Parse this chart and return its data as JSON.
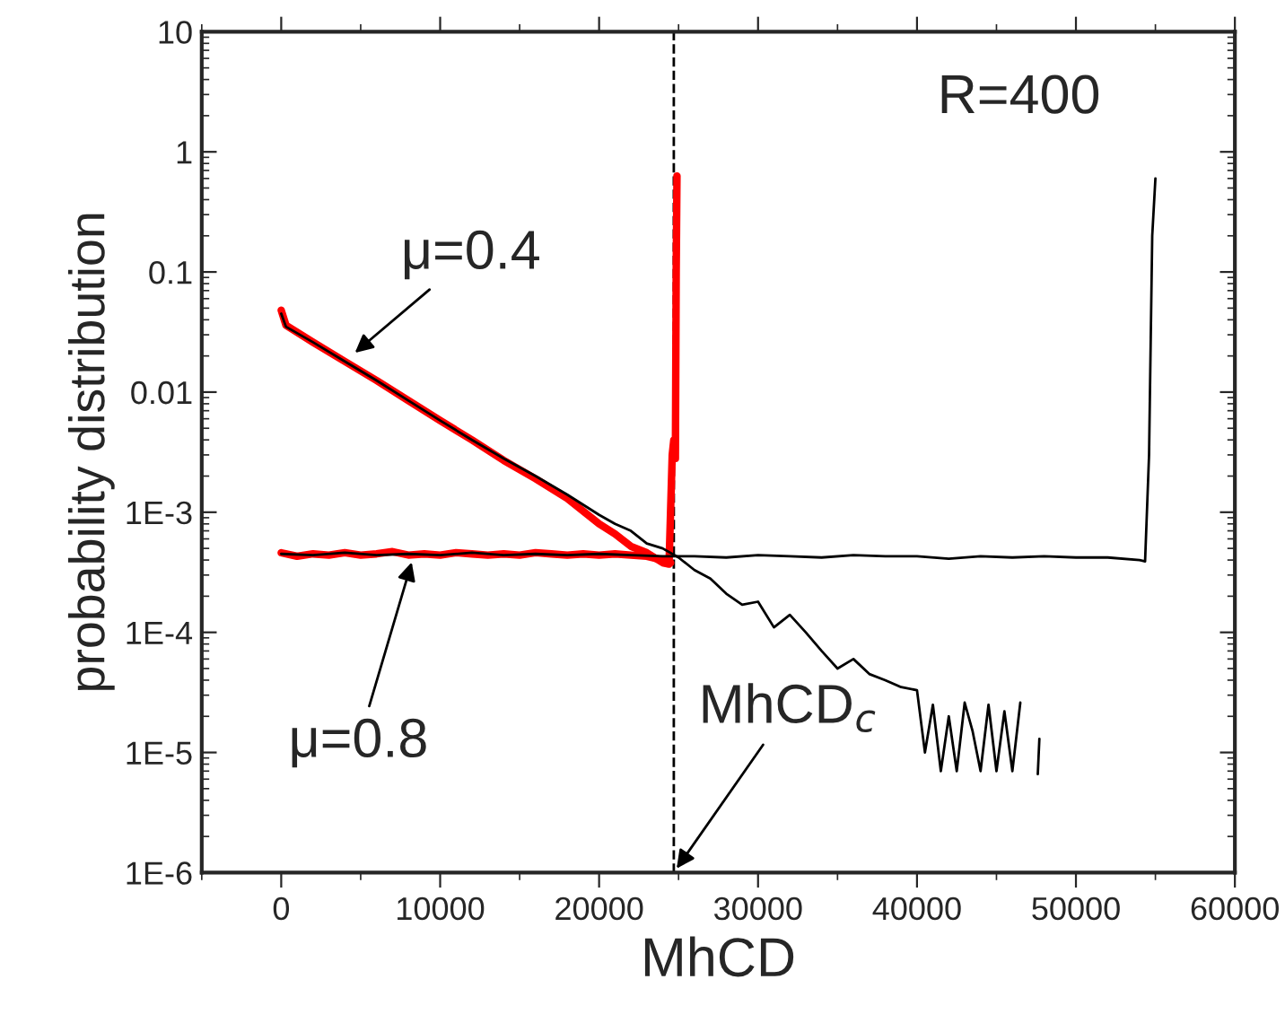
{
  "chart_data": {
    "type": "line",
    "xlabel": "MhCD",
    "ylabel": "probability distribution",
    "log": "y",
    "xlim": [
      -5000,
      60000
    ],
    "xticks": [
      0,
      10000,
      20000,
      30000,
      40000,
      50000,
      60000
    ],
    "ylim": [
      1e-06,
      10
    ],
    "yticks": [
      {
        "value": 1e-06,
        "label": "1E-6"
      },
      {
        "value": 1e-05,
        "label": "1E-5"
      },
      {
        "value": 0.0001,
        "label": "1E-4"
      },
      {
        "value": 0.001,
        "label": "1E-3"
      },
      {
        "value": 0.01,
        "label": "0.01"
      },
      {
        "value": 0.1,
        "label": "0.1"
      },
      {
        "value": 1,
        "label": "1"
      },
      {
        "value": 10,
        "label": "10"
      }
    ],
    "grid": false,
    "marker": "none",
    "line_style": "solid",
    "ref_lines": [
      {
        "axis": "x",
        "value": 24700,
        "color": "#000000",
        "line_style": "dashed"
      }
    ],
    "annotations": [
      {
        "text": "μ=0.4",
        "x": 4400,
        "y": 0.02
      },
      {
        "text": "μ=0.8",
        "x": 8300,
        "y": 0.00042
      },
      {
        "text": "MhCD$_{c}$",
        "x": 24700,
        "y": 1e-06
      },
      "R=400"
    ],
    "series": [
      {
        "color": "#ff0000",
        "x": [
          0,
          300,
          2000,
          4000,
          6000,
          8000,
          10000,
          12000,
          14000,
          16000,
          18000,
          20000,
          21000,
          22000,
          23000,
          24000,
          24400,
          24600,
          24700,
          24800,
          24850,
          24900
        ],
        "values": [
          0.048,
          0.036,
          0.026,
          0.018,
          0.0125,
          0.0085,
          0.0058,
          0.004,
          0.0027,
          0.0019,
          0.0013,
          0.0008,
          0.00066,
          0.00052,
          0.00046,
          0.00038,
          0.00037,
          0.003,
          0.004,
          0.0028,
          0.1,
          0.63
        ]
      },
      {
        "color": "#ff0000",
        "x": [
          0,
          1000,
          2000,
          3000,
          4000,
          5000,
          6000,
          7000,
          8000,
          9000,
          10000,
          11000,
          12000,
          13000,
          14000,
          15000,
          16000,
          17000,
          18000,
          19000,
          20000,
          21000,
          22000,
          23000,
          24000,
          24500
        ],
        "values": [
          0.00046,
          0.00043,
          0.00045,
          0.00044,
          0.00046,
          0.00044,
          0.00045,
          0.00047,
          0.00044,
          0.00045,
          0.00044,
          0.00046,
          0.00045,
          0.00044,
          0.00045,
          0.00044,
          0.00046,
          0.00045,
          0.00044,
          0.00045,
          0.00044,
          0.00045,
          0.00044,
          0.00043,
          0.0004,
          0.00038
        ]
      },
      {
        "color": "#000000",
        "x": [
          0,
          300,
          2000,
          4000,
          6000,
          8000,
          10000,
          12000,
          14000,
          16000,
          18000,
          20000,
          21000,
          22000,
          23000,
          24000,
          25000,
          26000,
          27000,
          28000,
          29000,
          30000,
          31000,
          32000,
          33000,
          34000,
          35000,
          36000,
          37000,
          38000,
          39000,
          40000,
          40500,
          41000,
          41500,
          42000,
          42500,
          43000,
          43500,
          44000,
          44500,
          45000,
          45500,
          46000,
          46500,
          47000,
          47600,
          47700
        ],
        "values": [
          0.045,
          0.035,
          0.026,
          0.018,
          0.0125,
          0.0085,
          0.0058,
          0.004,
          0.0028,
          0.002,
          0.0014,
          0.00095,
          0.0008,
          0.0007,
          0.00055,
          0.0005,
          0.00042,
          0.00033,
          0.00028,
          0.00021,
          0.00017,
          0.00018,
          0.00011,
          0.00014,
          0.0001,
          7e-05,
          5e-05,
          6e-05,
          4.5e-05,
          4e-05,
          3.5e-05,
          3.3e-05,
          1e-05,
          2.5e-05,
          7e-06,
          2e-05,
          7e-06,
          2.6e-05,
          1.5e-05,
          7e-06,
          2.5e-05,
          7e-06,
          2.2e-05,
          7e-06,
          2.6e-05,
          null,
          6.6e-06,
          1.3e-05
        ]
      },
      {
        "color": "#000000",
        "x": [
          0,
          2000,
          4000,
          6000,
          8000,
          10000,
          12000,
          14000,
          16000,
          18000,
          20000,
          22000,
          24000,
          26000,
          28000,
          30000,
          32000,
          34000,
          36000,
          38000,
          40000,
          42000,
          44000,
          46000,
          48000,
          50000,
          52000,
          54000,
          54350,
          54600,
          54800,
          55000
        ],
        "values": [
          0.00045,
          0.00044,
          0.00046,
          0.00044,
          0.00045,
          0.00044,
          0.00046,
          0.00044,
          0.00045,
          0.00044,
          0.00045,
          0.00044,
          0.00043,
          0.00043,
          0.00042,
          0.00044,
          0.00043,
          0.00042,
          0.00044,
          0.00043,
          0.00043,
          0.00041,
          0.00043,
          0.00042,
          0.00043,
          0.00042,
          0.00042,
          0.0004,
          0.00039,
          0.003,
          0.2,
          0.6
        ]
      }
    ]
  }
}
